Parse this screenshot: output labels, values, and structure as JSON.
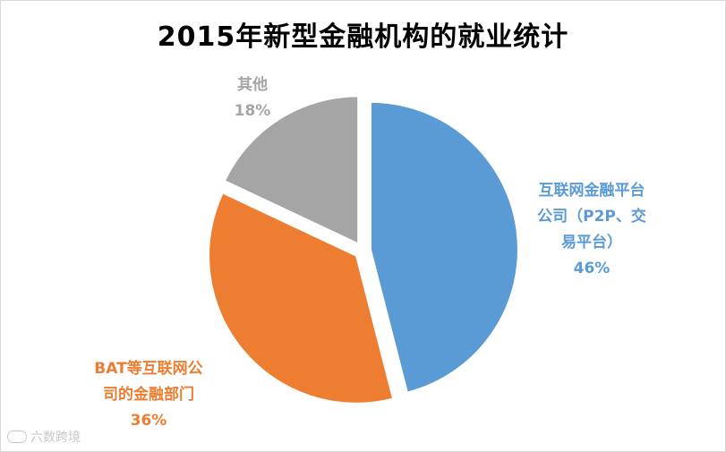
{
  "chart_data": {
    "type": "pie",
    "title": "2015年新型金融机构的就业统计",
    "slices": [
      {
        "label": "互联网金融平台公司（P2P、交易平台）",
        "label_lines": [
          "互联网金融平台",
          "公司（P2P、交",
          "易平台）"
        ],
        "value": 46,
        "value_label": "46%",
        "color": "#5b9bd5"
      },
      {
        "label": "BAT等互联网公司的金融部门",
        "label_lines": [
          "BAT等互联网公",
          "司的金融部门"
        ],
        "value": 36,
        "value_label": "36%",
        "color": "#ed7d31"
      },
      {
        "label": "其他",
        "label_lines": [
          "其他"
        ],
        "value": 18,
        "value_label": "18%",
        "color": "#a5a5a5"
      }
    ]
  },
  "watermark": {
    "text": "六数跨境"
  }
}
